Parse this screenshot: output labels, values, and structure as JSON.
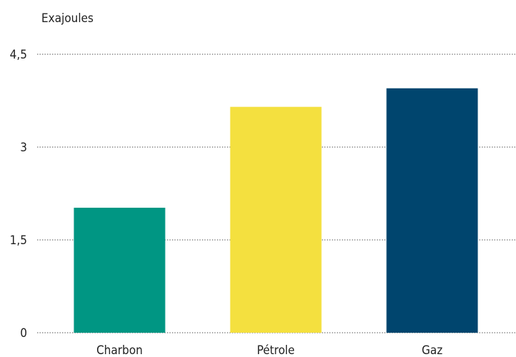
{
  "chart_data": {
    "type": "bar",
    "title": "",
    "unit_label": "Exajoules",
    "xlabel": "",
    "ylabel": "Exajoules",
    "categories": [
      "Charbon",
      "Pétrole",
      "Gaz"
    ],
    "values": [
      2.02,
      3.65,
      3.95
    ],
    "colors": [
      "#009683",
      "#f4e03f",
      "#00456e"
    ],
    "ylim": [
      0,
      4.5
    ],
    "yticks": [
      0,
      1.5,
      3,
      4.5
    ],
    "ytick_labels": [
      "0",
      "1,5",
      "3",
      "4,5"
    ],
    "grid": true,
    "legend": "none"
  }
}
